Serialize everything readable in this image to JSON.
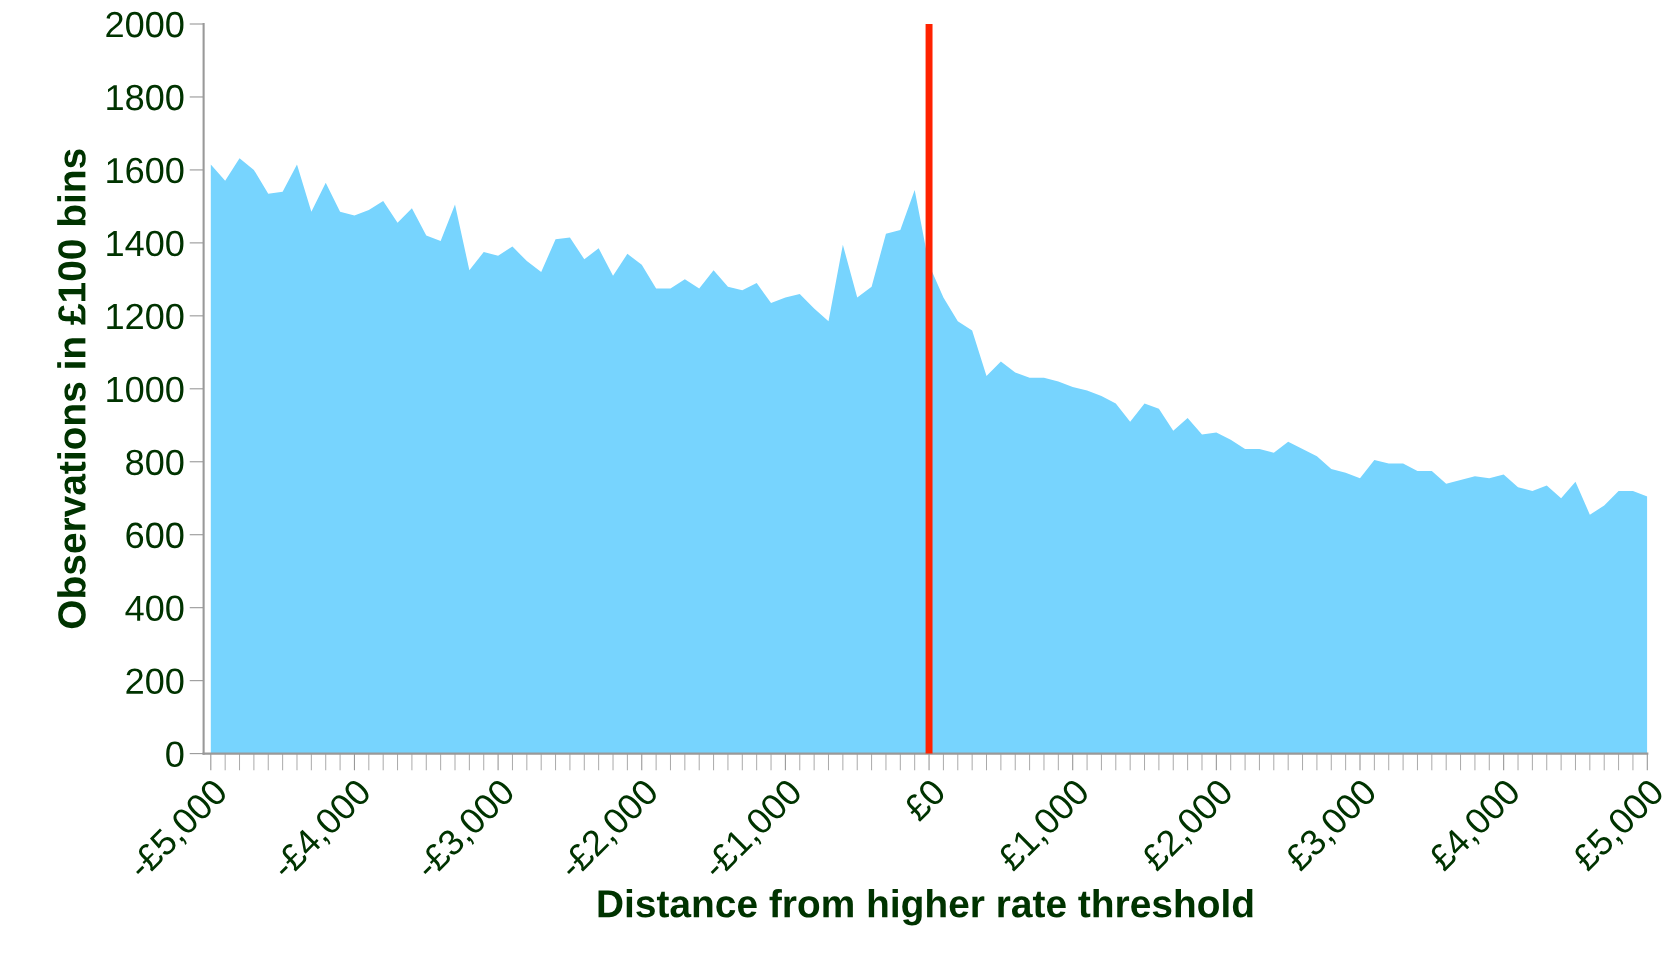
{
  "chart_data": {
    "type": "area",
    "xlabel": "Distance from higher rate threshold",
    "ylabel": "Observations in £100 bins",
    "x": [
      -5000,
      -4900,
      -4800,
      -4700,
      -4600,
      -4500,
      -4400,
      -4300,
      -4200,
      -4100,
      -4000,
      -3900,
      -3800,
      -3700,
      -3600,
      -3500,
      -3400,
      -3300,
      -3200,
      -3100,
      -3000,
      -2900,
      -2800,
      -2700,
      -2600,
      -2500,
      -2400,
      -2300,
      -2200,
      -2100,
      -2000,
      -1900,
      -1800,
      -1700,
      -1600,
      -1500,
      -1400,
      -1300,
      -1200,
      -1100,
      -1000,
      -900,
      -800,
      -700,
      -600,
      -500,
      -400,
      -300,
      -200,
      -100,
      0,
      100,
      200,
      300,
      400,
      500,
      600,
      700,
      800,
      900,
      1000,
      1100,
      1200,
      1300,
      1400,
      1500,
      1600,
      1700,
      1800,
      1900,
      2000,
      2100,
      2200,
      2300,
      2400,
      2500,
      2600,
      2700,
      2800,
      2900,
      3000,
      3100,
      3200,
      3300,
      3400,
      3500,
      3600,
      3700,
      3800,
      3900,
      4000,
      4100,
      4200,
      4300,
      4400,
      4500,
      4600,
      4700,
      4800,
      4900,
      5000
    ],
    "series": [
      {
        "color": "#77d4fe",
        "values": [
          1615,
          1570,
          1632,
          1600,
          1535,
          1540,
          1615,
          1485,
          1565,
          1485,
          1475,
          1490,
          1515,
          1455,
          1495,
          1420,
          1405,
          1505,
          1325,
          1375,
          1365,
          1390,
          1350,
          1320,
          1410,
          1415,
          1355,
          1385,
          1310,
          1370,
          1340,
          1275,
          1275,
          1300,
          1275,
          1325,
          1280,
          1270,
          1290,
          1235,
          1250,
          1260,
          1220,
          1185,
          1395,
          1250,
          1280,
          1425,
          1435,
          1545,
          1340,
          1250,
          1185,
          1160,
          1035,
          1075,
          1045,
          1030,
          1030,
          1020,
          1005,
          995,
          980,
          960,
          910,
          960,
          945,
          885,
          920,
          875,
          880,
          860,
          835,
          835,
          825,
          855,
          835,
          815,
          780,
          770,
          755,
          805,
          795,
          795,
          775,
          775,
          740,
          750,
          760,
          755,
          765,
          730,
          720,
          735,
          700,
          745,
          655,
          680,
          720,
          720,
          705
        ]
      }
    ],
    "xlim": [
      -5050,
      5000
    ],
    "ylim": [
      0,
      2000
    ],
    "yticks": [
      0,
      200,
      400,
      600,
      800,
      1000,
      1200,
      1400,
      1600,
      1800,
      2000
    ],
    "xticks": [
      {
        "value": -5000,
        "label": "-£5,000"
      },
      {
        "value": -4000,
        "label": "-£4,000"
      },
      {
        "value": -3000,
        "label": "-£3,000"
      },
      {
        "value": -2000,
        "label": "-£2,000"
      },
      {
        "value": -1000,
        "label": "-£1,000"
      },
      {
        "value": 0,
        "label": "£0"
      },
      {
        "value": 1000,
        "label": "£1,000"
      },
      {
        "value": 2000,
        "label": "£2,000"
      },
      {
        "value": 3000,
        "label": "£3,000"
      },
      {
        "value": 4000,
        "label": "£4,000"
      },
      {
        "value": 5000,
        "label": "£5,000"
      }
    ],
    "ref_lines": [
      {
        "axis": "x",
        "value": 0,
        "color": "#ff2200",
        "line_style": "solid"
      }
    ],
    "grid": false,
    "legend": false
  }
}
